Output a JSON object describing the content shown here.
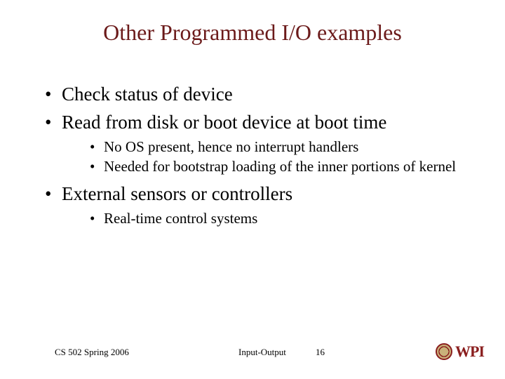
{
  "title": {
    "text": "Other Programmed I/O examples",
    "color": "#6b1a1a",
    "fontsize": 32
  },
  "bullets": [
    {
      "text": "Check status of device",
      "sub": []
    },
    {
      "text": "Read from disk or boot device at boot time",
      "sub": [
        "No OS present, hence no interrupt handlers",
        "Needed for bootstrap loading of the inner portions of kernel"
      ]
    },
    {
      "text": "External sensors or controllers",
      "sub": [
        "Real-time control systems"
      ]
    }
  ],
  "footer": {
    "left": "CS 502 Spring 2006",
    "center": "Input-Output",
    "page": "16"
  },
  "logo": {
    "text": "WPI",
    "color": "#8a1e1e"
  }
}
